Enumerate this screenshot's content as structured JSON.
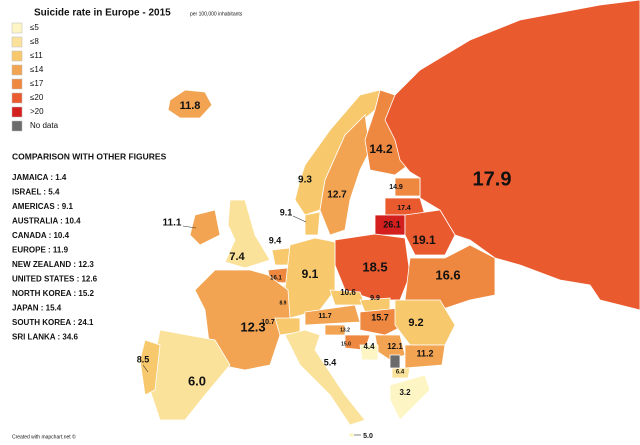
{
  "header": {
    "title": "Suicide rate in Europe - 2015",
    "subtitle": "per 100,000 inhabitants"
  },
  "legend": {
    "classes": [
      {
        "value": 5,
        "label": "≤5",
        "color": "#fdf5c4"
      },
      {
        "value": 8,
        "label": "≤8",
        "color": "#fbe29a"
      },
      {
        "value": 11,
        "label": "≤11",
        "color": "#f7c86c"
      },
      {
        "value": 14,
        "label": "≤14",
        "color": "#f2a452"
      },
      {
        "value": 17,
        "label": "≤17",
        "color": "#ee8840"
      },
      {
        "value": 20,
        "label": "≤20",
        "color": "#ea5a2f"
      },
      {
        "value": 20,
        "label": ">20",
        "color": "#d3201f"
      },
      {
        "label": "No data",
        "color": "#6b6b6b"
      }
    ]
  },
  "comparison": {
    "title": "COMPARISON WITH OTHER FIGURES",
    "items": [
      "JAMAICA : 1.4",
      "ISRAEL : 5.4",
      "AMERICAS : 9.1",
      "AUSTRALIA : 10.4",
      "CANADA : 10.4",
      "EUROPE : 11.9",
      "NEW ZEALAND : 12.3",
      "UNITED STATES : 12.6",
      "NORTH KOREA : 15.2",
      "JAPAN : 15.4",
      "SOUTH KOREA : 24.1",
      "SRI LANKA : 34.6"
    ]
  },
  "map": {
    "regions": [
      11.8,
      9.3,
      12.7,
      14.2,
      17.9,
      14.9,
      17.4,
      26.1,
      19.1,
      18.5,
      16.6,
      9.1,
      11.1,
      7.4,
      9.4,
      16.1,
      8.9,
      9.1,
      12.3,
      10.7,
      11.7,
      10.6,
      9.9,
      15.7,
      13.2,
      {
        "value": 15.0,
        "label": "15.0"
      },
      9.2,
      12.1,
      4.4,
      11.2,
      6.4,
      3.2,
      5.4,
      {
        "value": 6.0,
        "label": "6.0"
      },
      8.5,
      {
        "value": 5.0,
        "label": "5.0"
      }
    ]
  },
  "footer": "Created with mapchart.net ©"
}
